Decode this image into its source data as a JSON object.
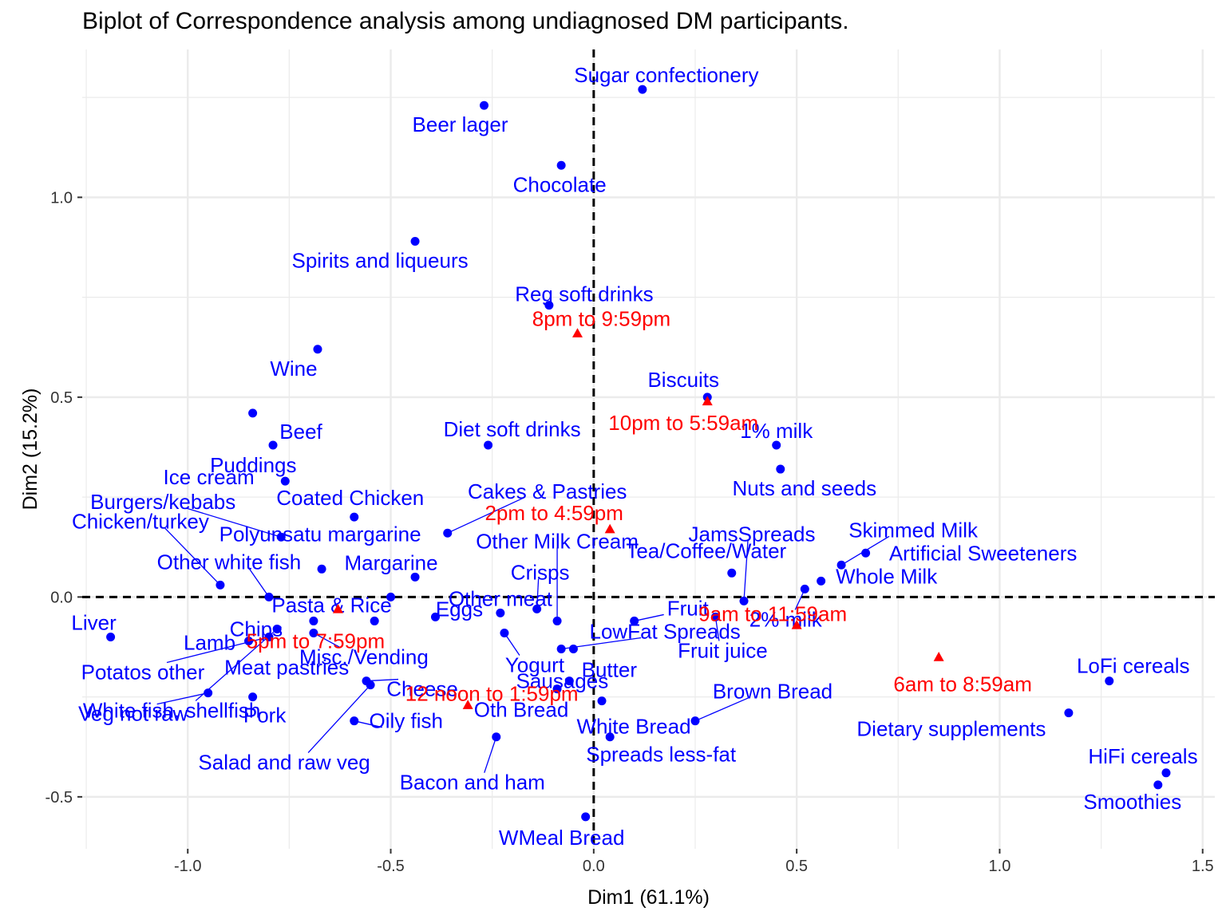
{
  "chart_data": {
    "type": "scatter",
    "title": "Biplot of Correspondence analysis among undiagnosed DM participants.",
    "xlabel": "Dim1 (61.1%)",
    "ylabel": "Dim2 (15.2%)",
    "xlim": [
      -1.26,
      1.53
    ],
    "ylim": [
      -0.63,
      1.37
    ],
    "xticks": [
      -1.0,
      -0.5,
      0.0,
      0.5,
      1.0,
      1.5
    ],
    "xtick_labels": [
      "-1.0",
      "-0.5",
      "0.0",
      "0.5",
      "1.0",
      "1.5"
    ],
    "yticks": [
      -0.5,
      0.0,
      0.5,
      1.0
    ],
    "ytick_labels": [
      "-0.5",
      "0.0",
      "0.5",
      "1.0"
    ],
    "grid": true,
    "reference_lines": {
      "x": 0,
      "y": 0,
      "style": "dashed"
    },
    "colors": {
      "foods": "#0000ff",
      "times": "#ff0000",
      "grid": "#ebebeb"
    },
    "foods": [
      {
        "name": "Sugar confectionery",
        "x": 0.12,
        "y": 1.27
      },
      {
        "name": "Beer lager",
        "x": -0.27,
        "y": 1.23
      },
      {
        "name": "Chocolate",
        "x": -0.08,
        "y": 1.08
      },
      {
        "name": "Spirits and liqueurs",
        "x": -0.44,
        "y": 0.89
      },
      {
        "name": "Reg soft drinks",
        "x": -0.11,
        "y": 0.73
      },
      {
        "name": "Wine",
        "x": -0.68,
        "y": 0.62
      },
      {
        "name": "Biscuits",
        "x": 0.28,
        "y": 0.5
      },
      {
        "name": "Ice cream",
        "x": -0.84,
        "y": 0.46
      },
      {
        "name": "Beef",
        "x": -0.79,
        "y": 0.38
      },
      {
        "name": "Diet soft drinks",
        "x": -0.26,
        "y": 0.38
      },
      {
        "name": "1% milk",
        "x": 0.45,
        "y": 0.38
      },
      {
        "name": "Puddings",
        "x": -0.76,
        "y": 0.29
      },
      {
        "name": "Nuts and seeds",
        "x": 0.46,
        "y": 0.32
      },
      {
        "name": "Coated Chicken",
        "x": -0.59,
        "y": 0.2
      },
      {
        "name": "Cakes & Pastries",
        "x": -0.36,
        "y": 0.16
      },
      {
        "name": "Burgers/kebabs",
        "x": -0.77,
        "y": 0.15
      },
      {
        "name": "Polyunsatu margarine",
        "x": -0.67,
        "y": 0.07
      },
      {
        "name": "Other Milk Cream",
        "x": -0.09,
        "y": -0.06
      },
      {
        "name": "JamsSpreads",
        "x": 0.37,
        "y": -0.01
      },
      {
        "name": "Skimmed Milk",
        "x": 0.61,
        "y": 0.08
      },
      {
        "name": "Artificial Sweeteners",
        "x": 0.67,
        "y": 0.11
      },
      {
        "name": "Chicken/turkey",
        "x": -0.92,
        "y": 0.03
      },
      {
        "name": "Margarine",
        "x": -0.44,
        "y": 0.05
      },
      {
        "name": "Crisps",
        "x": -0.14,
        "y": -0.03
      },
      {
        "name": "Tea/Coffee/Water",
        "x": 0.34,
        "y": 0.06
      },
      {
        "name": "Whole Milk",
        "x": 0.56,
        "y": 0.04
      },
      {
        "name": "Other white fish",
        "x": -0.8,
        "y": 0.0
      },
      {
        "name": "Chips",
        "x": -0.69,
        "y": -0.06
      },
      {
        "name": "Pasta & Rice",
        "x": -0.5,
        "y": 0.0
      },
      {
        "name": "Eggs",
        "x": -0.39,
        "y": -0.05
      },
      {
        "name": "LowFat Spreads",
        "x": -0.08,
        "y": -0.13
      },
      {
        "name": "2% milk",
        "x": 0.52,
        "y": 0.02
      },
      {
        "name": "Liver",
        "x": -1.19,
        "y": -0.1
      },
      {
        "name": "Lamb",
        "x": -0.85,
        "y": -0.11
      },
      {
        "name": "Other meat",
        "x": -0.23,
        "y": -0.04
      },
      {
        "name": "Sausages",
        "x": -0.05,
        "y": -0.13
      },
      {
        "name": "Fruit",
        "x": 0.1,
        "y": -0.06
      },
      {
        "name": "Fruit juice",
        "x": 0.3,
        "y": -0.05
      },
      {
        "name": "Potatos other",
        "x": -0.8,
        "y": -0.1
      },
      {
        "name": "Misc./Vending",
        "x": -0.69,
        "y": -0.09
      },
      {
        "name": "Yogurt",
        "x": -0.22,
        "y": -0.09
      },
      {
        "name": "Butter",
        "x": -0.06,
        "y": -0.21
      },
      {
        "name": "LoFi cereals",
        "x": 1.27,
        "y": -0.21
      },
      {
        "name": "Meat pastries",
        "x": -0.54,
        "y": -0.06
      },
      {
        "name": "Cheese",
        "x": -0.56,
        "y": -0.21
      },
      {
        "name": "Veg not raw",
        "x": -0.95,
        "y": -0.24
      },
      {
        "name": "Pork",
        "x": -0.84,
        "y": -0.25
      },
      {
        "name": "Oily fish",
        "x": -0.59,
        "y": -0.31
      },
      {
        "name": "Oth Bread",
        "x": -0.09,
        "y": -0.23
      },
      {
        "name": "White Bread",
        "x": 0.02,
        "y": -0.26
      },
      {
        "name": "Brown Bread",
        "x": 0.25,
        "y": -0.31
      },
      {
        "name": "Dietary supplements",
        "x": 1.17,
        "y": -0.29
      },
      {
        "name": "White fish, shellfish",
        "x": -0.78,
        "y": -0.08
      },
      {
        "name": "Salad and raw veg",
        "x": -0.55,
        "y": -0.22
      },
      {
        "name": "Spreads less-fat",
        "x": 0.04,
        "y": -0.35
      },
      {
        "name": "HiFi cereals",
        "x": 1.41,
        "y": -0.44
      },
      {
        "name": "Bacon and ham",
        "x": -0.24,
        "y": -0.35
      },
      {
        "name": "Smoothies",
        "x": 1.39,
        "y": -0.47
      },
      {
        "name": "WMeal Bread",
        "x": -0.02,
        "y": -0.55
      }
    ],
    "times": [
      {
        "name": "8pm to 9:59pm",
        "x": -0.04,
        "y": 0.66
      },
      {
        "name": "10pm to 5:59am",
        "x": 0.28,
        "y": 0.49
      },
      {
        "name": "2pm to 4:59pm",
        "x": 0.04,
        "y": 0.17
      },
      {
        "name": "5pm to 7:59pm",
        "x": -0.63,
        "y": -0.03
      },
      {
        "name": "9am to 11:59am",
        "x": 0.5,
        "y": -0.07
      },
      {
        "name": "6am to 8:59am",
        "x": 0.85,
        "y": -0.15
      },
      {
        "name": "12 noon to 1:59pm",
        "x": -0.31,
        "y": -0.27
      }
    ]
  }
}
